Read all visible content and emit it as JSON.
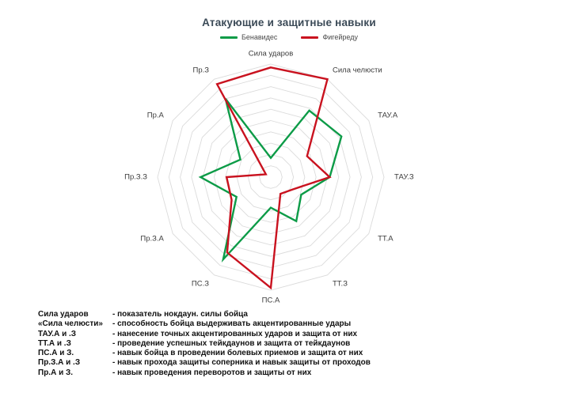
{
  "title": "Атакующие и защитные навыки",
  "legend": [
    {
      "label": "Бенавидес",
      "color": "#0c9b47"
    },
    {
      "label": "Фигейреду",
      "color": "#c9121f"
    }
  ],
  "chart_data": {
    "type": "radar",
    "categories": [
      "Сила ударов",
      "Сила челюсти",
      "ТАУ.А",
      "ТАУ.З",
      "ТТ.А",
      "ТТ.З",
      "ПС.А",
      "ПС.З",
      "Пр.З.А",
      "Пр.З.З",
      "Пр.А",
      "Пр.З"
    ],
    "series": [
      {
        "name": "Бенавидес",
        "color": "#0c9b47",
        "values": [
          17,
          68,
          72,
          52,
          31,
          45,
          27,
          84,
          35,
          62,
          31,
          80
        ]
      },
      {
        "name": "Фигейреду",
        "color": "#c9121f",
        "values": [
          97,
          100,
          37,
          52,
          22,
          17,
          98,
          77,
          40,
          39,
          5,
          95
        ]
      }
    ],
    "title": "Атакующие и защитные навыки",
    "axis_range": [
      0,
      100
    ],
    "rings": 10,
    "grid_color": "#dbdbdb",
    "legend_position": "top",
    "label_color": "#3b3b3b"
  },
  "glossary": [
    {
      "term": "Сила ударов",
      "desc": "- показатель нокдаун. силы бойца"
    },
    {
      "term": "«Сила челюсти»",
      "desc": "- способность бойца выдерживать акцентированные удары"
    },
    {
      "term": "ТАУ.А и .З",
      "desc": "- нанесение точных акцентированных ударов и защита от них"
    },
    {
      "term": "ТТ.А и .З",
      "desc": "- проведение успешных тейкдаунов и защита от тейкдаунов"
    },
    {
      "term": "ПС.А и З.",
      "desc": "- навык бойца в проведении болевых приемов и защита от них"
    },
    {
      "term": "Пр.З.А и .З",
      "desc": "- навык прохода защиты соперника и навык защиты от проходов"
    },
    {
      "term": "Пр.А и З.",
      "desc": "- навык проведения переворотов и защиты от них"
    }
  ]
}
